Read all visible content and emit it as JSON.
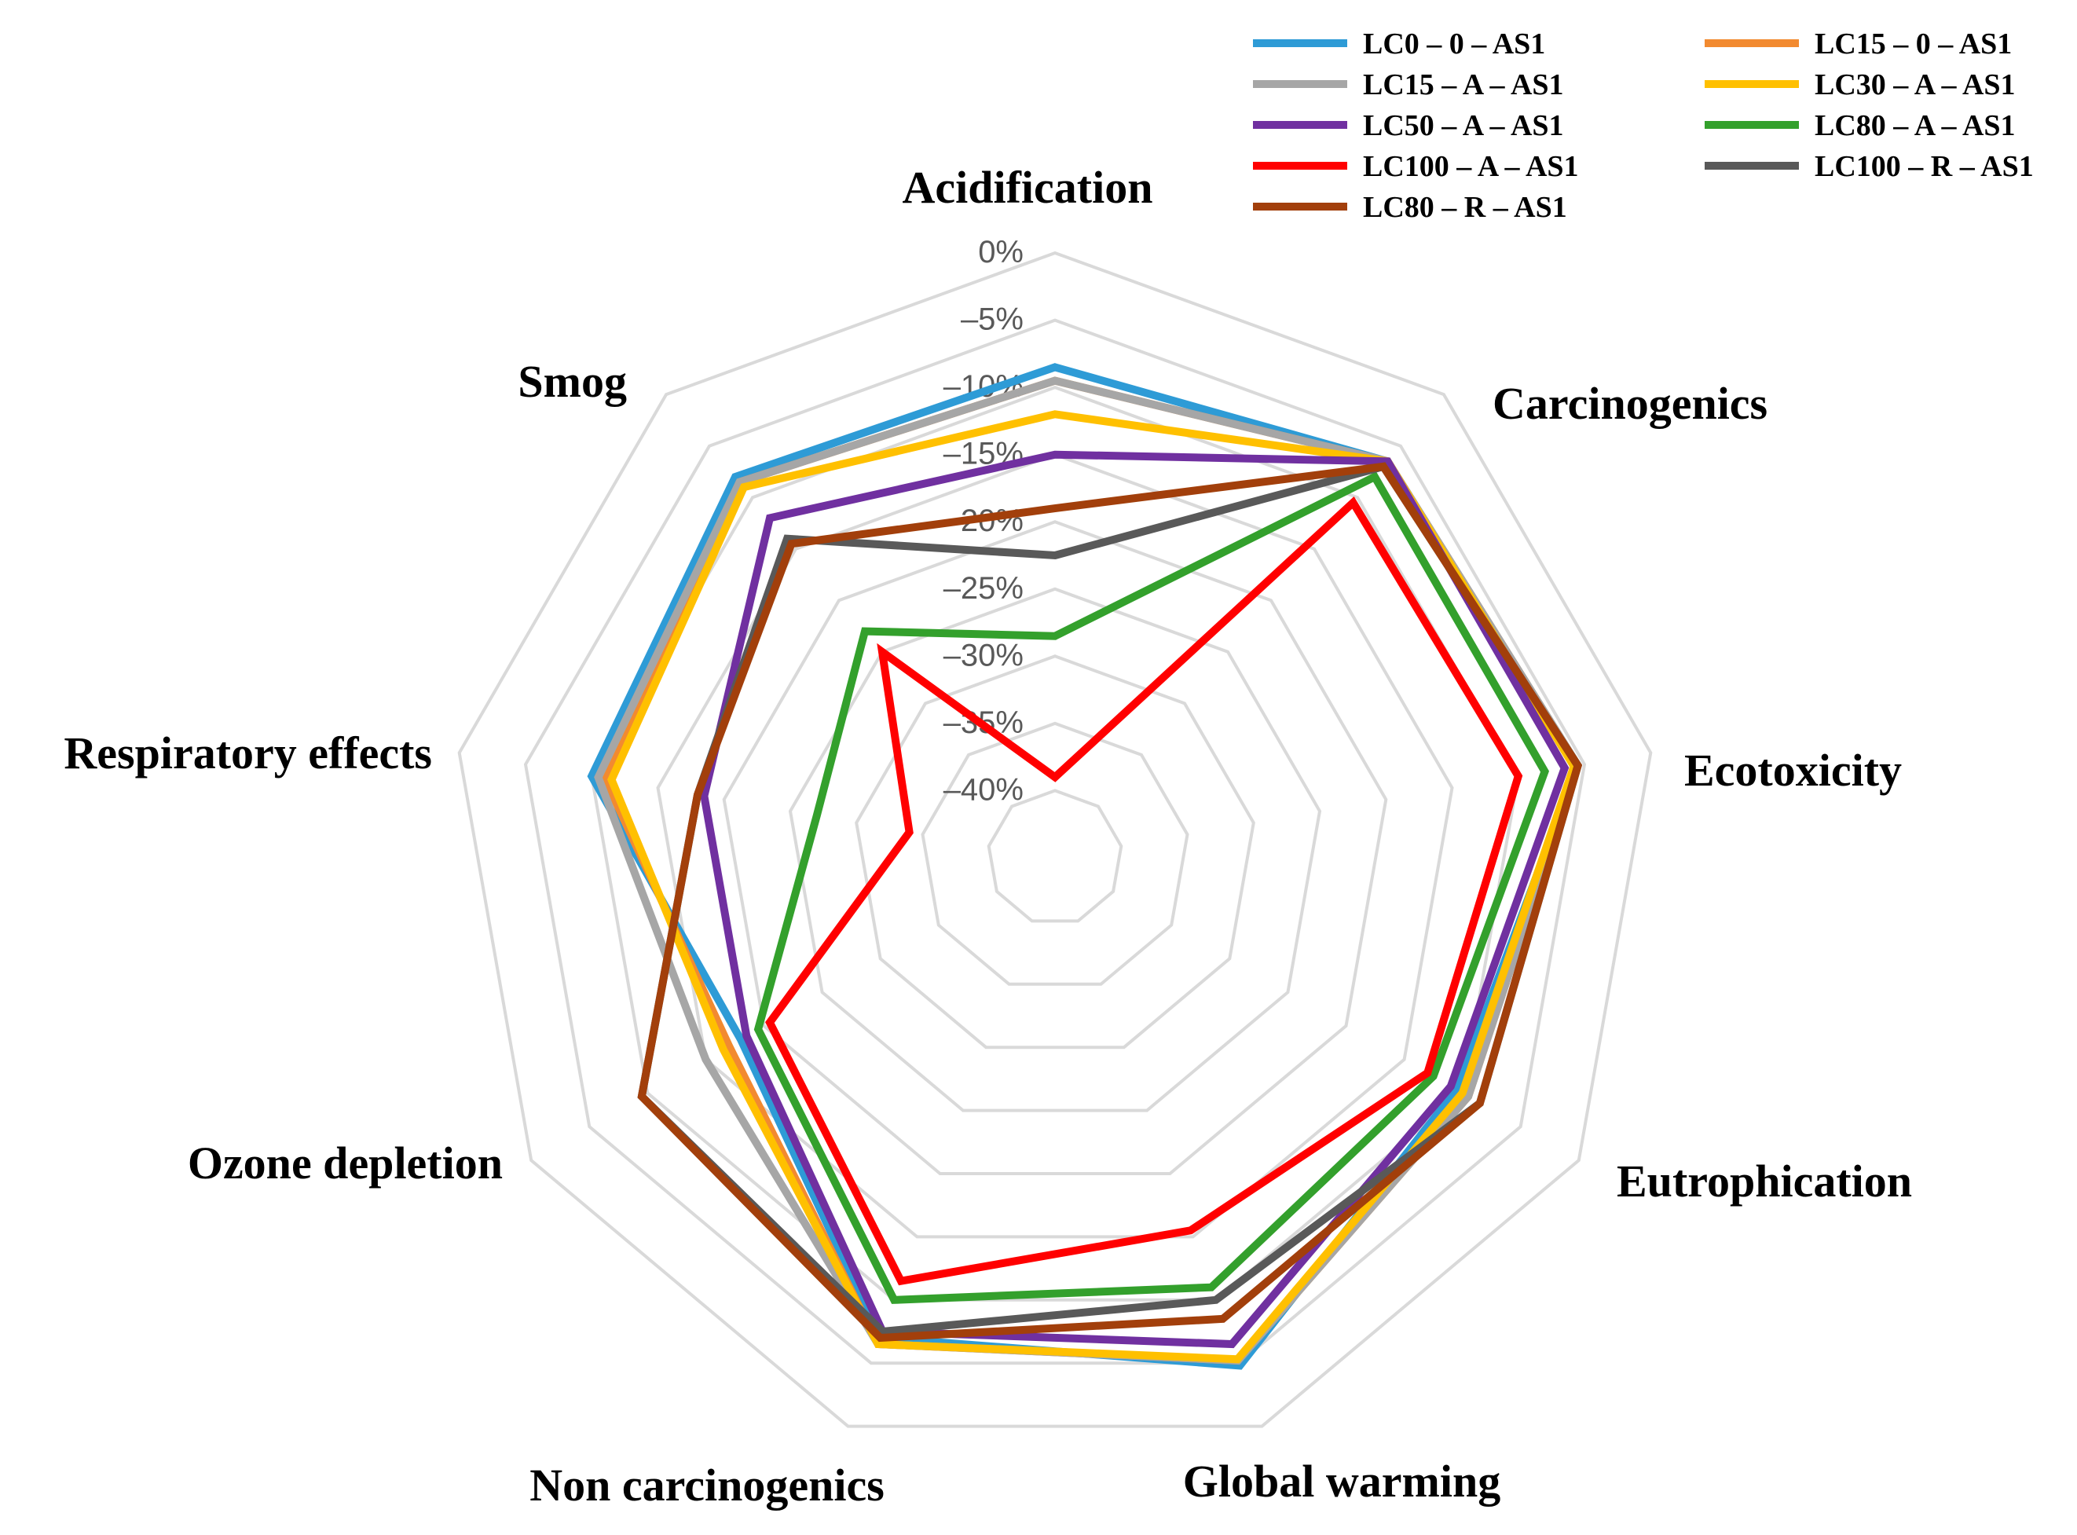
{
  "chart_data": {
    "type": "radar",
    "title": "",
    "axes": [
      "Acidification",
      "Carcinogenics",
      "Ecotoxicity",
      "Eutrophication",
      "Global warming",
      "Non carcinogenics",
      "Ozone depletion",
      "Respiratory effects",
      "Smog"
    ],
    "tick_labels": [
      "0%",
      "–5%",
      "–10%",
      "–15%",
      "–20%",
      "–25%",
      "–30%",
      "–35%",
      "–40%"
    ],
    "range": [
      -45,
      0
    ],
    "ring_values": [
      0,
      -5,
      -10,
      -15,
      -20,
      -25,
      -30,
      -35,
      -40,
      -45
    ],
    "grid": true,
    "legend_position": "top-right",
    "series": [
      {
        "name": "LC0 – 0 – AS1",
        "color": "#2e9bd6",
        "values": [
          -8.5,
          -6.5,
          -5.5,
          -10.5,
          -4.8,
          -7,
          -18,
          -10,
          -8
        ]
      },
      {
        "name": "LC15 – 0 – AS1",
        "color": "#f28a30",
        "values": [
          -9.5,
          -6.5,
          -5.5,
          -9.5,
          -5.2,
          -6.5,
          -17,
          -11,
          -8.5
        ]
      },
      {
        "name": "LC15 – A – AS1",
        "color": "#a6a6a6",
        "values": [
          -9.5,
          -6.5,
          -5.5,
          -9.5,
          -5.2,
          -6.5,
          -15,
          -10.5,
          -8.5
        ]
      },
      {
        "name": "LC30 – A – AS1",
        "color": "#ffc000",
        "values": [
          -12,
          -6.5,
          -5.8,
          -10,
          -5.3,
          -6.5,
          -16.5,
          -11.5,
          -9
        ]
      },
      {
        "name": "LC50 – A – AS1",
        "color": "#7030a0",
        "values": [
          -15,
          -6.5,
          -6.5,
          -11,
          -6.5,
          -7.5,
          -18.5,
          -18.5,
          -12
        ]
      },
      {
        "name": "LC80 – A – AS1",
        "color": "#33a02c",
        "values": [
          -28.5,
          -8,
          -8,
          -12.5,
          -11,
          -10,
          -19.5,
          -27,
          -23
        ]
      },
      {
        "name": "LC100 – A – AS1",
        "color": "#ff0000",
        "values": [
          -39,
          -10.5,
          -10,
          -13,
          -15.5,
          -11.5,
          -20.5,
          -34,
          -25
        ]
      },
      {
        "name": "LC100 – R – AS1",
        "color": "#595959",
        "values": [
          -22.5,
          -7,
          -5.5,
          -8.5,
          -10,
          -7.5,
          -9.5,
          -18,
          -14
        ]
      },
      {
        "name": "LC80 – R – AS1",
        "color": "#a23f0b",
        "values": [
          -19,
          -7,
          -5.5,
          -8.5,
          -8.5,
          -7,
          -9.5,
          -18,
          -14.5
        ]
      }
    ]
  }
}
